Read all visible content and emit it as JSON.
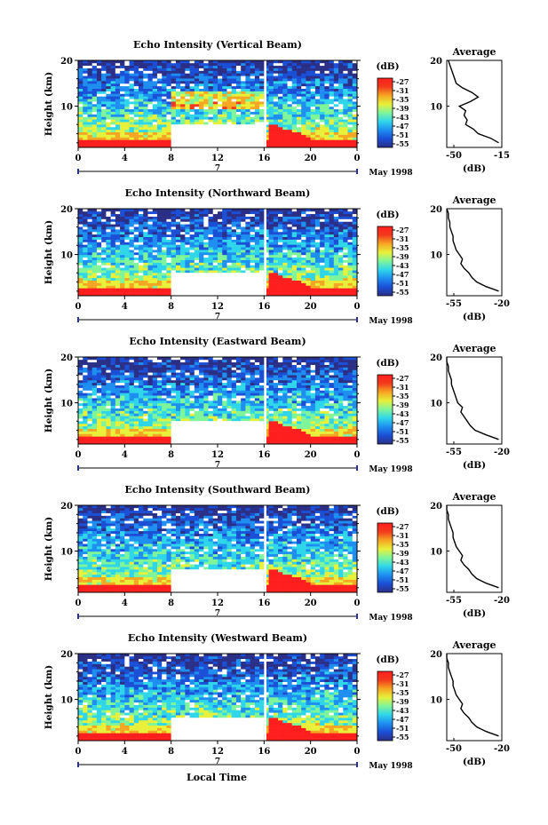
{
  "figure": {
    "xlabel": "Local Time",
    "colorbar_unit": "(dB)",
    "colorbar_ticks": [
      "-27",
      "-31",
      "-35",
      "-39",
      "-43",
      "-47",
      "-51",
      "-55"
    ],
    "month_label": "May 1998",
    "day_label": "7",
    "colors": {
      "colorscale": [
        "#2b2f86",
        "#1b4fd6",
        "#1e8ff0",
        "#2fd6ea",
        "#7ff59a",
        "#e8f03a",
        "#f5a623",
        "#f23b1c",
        "#ff1f1f"
      ],
      "background": "#ffffff",
      "axes": "#000000",
      "gap": "#ffffff"
    }
  },
  "chart_data": [
    {
      "type": "heatmap",
      "title": "Echo Intensity (Vertical Beam)",
      "ylabel": "Height (km)",
      "x_ticks": [
        "0",
        "4",
        "8",
        "12",
        "16",
        "20",
        "0"
      ],
      "xlim": [
        0,
        24
      ],
      "y_ticks": [
        "20",
        "10"
      ],
      "ylim": [
        1,
        20
      ],
      "clim": [
        -55,
        -27
      ],
      "missing_intervals_hours": [
        [
          8,
          16,
          "below 6 km"
        ],
        [
          16,
          16.2,
          "all heights"
        ]
      ],
      "profile": {
        "title": "Average",
        "xlabel": "(dB)",
        "x_ticks": [
          "-50",
          "-15"
        ],
        "xlim": [
          -50,
          -15
        ],
        "height_km": [
          2,
          3,
          4,
          5,
          6,
          7,
          8,
          9,
          10,
          11,
          12,
          13,
          14,
          15,
          16,
          17,
          18,
          19,
          20
        ],
        "value_db": [
          -17,
          -22,
          -30,
          -33,
          -38,
          -37,
          -39,
          -38,
          -42,
          -35,
          -30,
          -34,
          -40,
          -44,
          -45,
          -46,
          -47,
          -48,
          -49
        ]
      }
    },
    {
      "type": "heatmap",
      "title": "Echo Intensity (Northward Beam)",
      "ylabel": "Height (km)",
      "x_ticks": [
        "0",
        "4",
        "8",
        "12",
        "16",
        "20",
        "0"
      ],
      "xlim": [
        0,
        24
      ],
      "y_ticks": [
        "20",
        "10"
      ],
      "ylim": [
        1,
        20
      ],
      "clim": [
        -55,
        -27
      ],
      "missing_intervals_hours": [
        [
          8,
          16,
          "below 6 km"
        ],
        [
          16,
          16.2,
          "all heights"
        ]
      ],
      "profile": {
        "title": "Average",
        "xlabel": "(dB)",
        "x_ticks": [
          "-55",
          "-20"
        ],
        "xlim": [
          -55,
          -20
        ],
        "height_km": [
          2,
          3,
          4,
          5,
          6,
          7,
          8,
          9,
          10,
          11,
          12,
          13,
          14,
          15,
          16,
          17,
          18,
          19,
          20
        ],
        "value_db": [
          -22,
          -30,
          -36,
          -39,
          -41,
          -44,
          -46,
          -45,
          -47,
          -49,
          -50,
          -51,
          -51,
          -52,
          -53,
          -53,
          -54,
          -54,
          -55
        ]
      }
    },
    {
      "type": "heatmap",
      "title": "Echo Intensity (Eastward Beam)",
      "ylabel": "Height (km)",
      "x_ticks": [
        "0",
        "4",
        "8",
        "12",
        "16",
        "20",
        "0"
      ],
      "xlim": [
        0,
        24
      ],
      "y_ticks": [
        "20",
        "10"
      ],
      "ylim": [
        1,
        20
      ],
      "clim": [
        -55,
        -27
      ],
      "missing_intervals_hours": [
        [
          8,
          16,
          "below 6 km"
        ],
        [
          16,
          16.2,
          "all heights"
        ]
      ],
      "profile": {
        "title": "Average",
        "xlabel": "(dB)",
        "x_ticks": [
          "-55",
          "-20"
        ],
        "xlim": [
          -55,
          -20
        ],
        "height_km": [
          2,
          3,
          4,
          5,
          6,
          7,
          8,
          9,
          10,
          11,
          12,
          13,
          14,
          15,
          16,
          17,
          18,
          19,
          20
        ],
        "value_db": [
          -22,
          -30,
          -37,
          -40,
          -42,
          -44,
          -46,
          -45,
          -48,
          -49,
          -50,
          -51,
          -52,
          -52,
          -53,
          -54,
          -54,
          -55,
          -55
        ]
      }
    },
    {
      "type": "heatmap",
      "title": "Echo Intensity (Southward Beam)",
      "ylabel": "Height (km)",
      "x_ticks": [
        "0",
        "4",
        "8",
        "12",
        "16",
        "20",
        "0"
      ],
      "xlim": [
        0,
        24
      ],
      "y_ticks": [
        "20",
        "10"
      ],
      "ylim": [
        1,
        20
      ],
      "clim": [
        -55,
        -27
      ],
      "missing_intervals_hours": [
        [
          8,
          16,
          "below 6 km"
        ],
        [
          16,
          16.2,
          "all heights"
        ]
      ],
      "profile": {
        "title": "Average",
        "xlabel": "(dB)",
        "x_ticks": [
          "-55",
          "-20"
        ],
        "xlim": [
          -55,
          -20
        ],
        "height_km": [
          2,
          3,
          4,
          5,
          6,
          7,
          8,
          9,
          10,
          11,
          12,
          13,
          14,
          15,
          16,
          17,
          18,
          19,
          20
        ],
        "value_db": [
          -22,
          -30,
          -36,
          -39,
          -41,
          -44,
          -46,
          -45,
          -47,
          -49,
          -50,
          -51,
          -51,
          -52,
          -53,
          -54,
          -54,
          -55,
          -55
        ]
      }
    },
    {
      "type": "heatmap",
      "title": "Echo Intensity (Westward Beam)",
      "ylabel": "Height (km)",
      "x_ticks": [
        "0",
        "4",
        "8",
        "12",
        "16",
        "20",
        "0"
      ],
      "xlim": [
        0,
        24
      ],
      "y_ticks": [
        "20",
        "10"
      ],
      "ylim": [
        1,
        20
      ],
      "clim": [
        -55,
        -27
      ],
      "missing_intervals_hours": [
        [
          8,
          16,
          "below 6 km"
        ],
        [
          16,
          16.2,
          "all heights"
        ]
      ],
      "profile": {
        "title": "Average",
        "xlabel": "(dB)",
        "x_ticks": [
          "-50",
          "-20"
        ],
        "xlim": [
          -55,
          -20
        ],
        "height_km": [
          2,
          3,
          4,
          5,
          6,
          7,
          8,
          9,
          10,
          11,
          12,
          13,
          14,
          15,
          16,
          17,
          18,
          19,
          20
        ],
        "value_db": [
          -22,
          -30,
          -36,
          -39,
          -41,
          -44,
          -46,
          -45,
          -47,
          -49,
          -50,
          -51,
          -51,
          -52,
          -53,
          -54,
          -54,
          -55,
          -55
        ]
      }
    }
  ]
}
